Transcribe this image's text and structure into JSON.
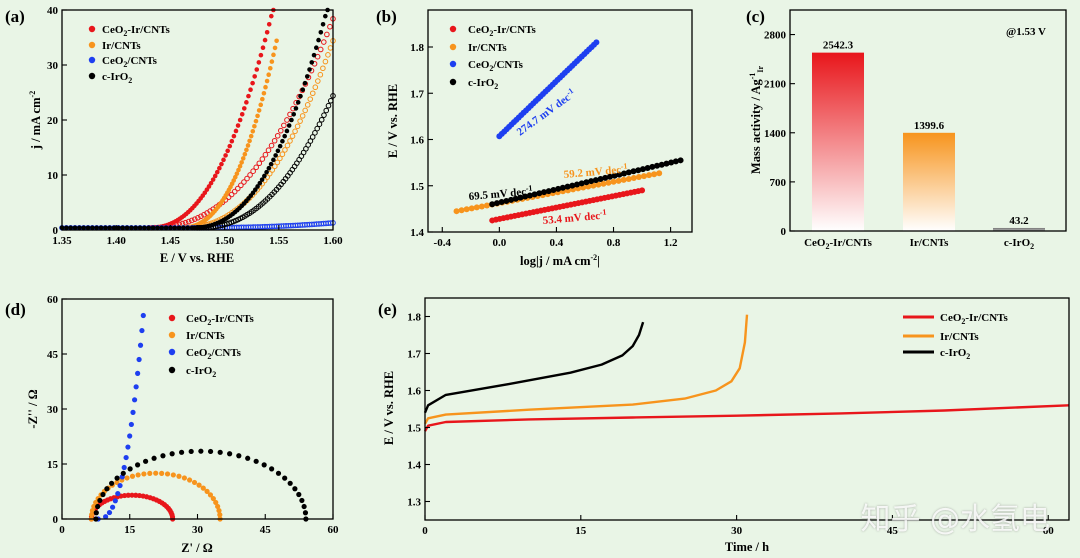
{
  "chart_data": [
    {
      "panel": "(a)",
      "type": "scatter",
      "xlabel": "E / V vs. RHE",
      "ylabel": "j / mA cm",
      "xlim": [
        1.35,
        1.6
      ],
      "ylim": [
        0,
        40
      ],
      "xticks": [
        "1.35",
        "1.40",
        "1.45",
        "1.50",
        "1.55",
        "1.60"
      ],
      "yticks": [
        "0",
        "10",
        "20",
        "30",
        "40"
      ],
      "series": [
        {
          "name": "CeO2-Ir/CNTs",
          "color": "#e8161b",
          "onset": 1.43,
          "end": 1.545,
          "k": 40
        },
        {
          "name": "CeO2-Ir/CNTs (open)",
          "color": "#e8161b",
          "onset": 1.43,
          "end": 1.6,
          "k": 38,
          "open": true
        },
        {
          "name": "Ir/CNTs",
          "color": "#f7941d",
          "onset": 1.46,
          "end": 1.548,
          "k": 34
        },
        {
          "name": "Ir/CNTs (open)",
          "color": "#f7941d",
          "onset": 1.46,
          "end": 1.6,
          "k": 34,
          "open": true
        },
        {
          "name": "CeO2/CNTs",
          "color": "#1e3ff0",
          "onset": 1.47,
          "end": 1.6,
          "k": 0.9,
          "open": true
        },
        {
          "name": "c-IrO2",
          "color": "#000000",
          "onset": 1.47,
          "end": 1.595,
          "k": 40
        },
        {
          "name": "c-IrO2 (open)",
          "color": "#000000",
          "onset": 1.475,
          "end": 1.6,
          "k": 24,
          "open": true
        }
      ]
    },
    {
      "panel": "(b)",
      "type": "line",
      "xlabel": "log|j / mA cm",
      "xlabel_end": "|",
      "ylabel": "E / V vs. RHE",
      "xlim": [
        -0.5,
        1.35
      ],
      "ylim": [
        1.4,
        1.88
      ],
      "xticks": [
        "-0.4",
        "0.0",
        "0.4",
        "0.8",
        "1.2"
      ],
      "yticks": [
        "1.4",
        "1.5",
        "1.6",
        "1.7",
        "1.8"
      ],
      "series": [
        {
          "name": "CeO2-Ir/CNTs",
          "color": "#e8161b",
          "x": [
            -0.05,
            1.0
          ],
          "y": [
            1.425,
            1.49
          ],
          "slope": "53.4 mV dec"
        },
        {
          "name": "Ir/CNTs",
          "color": "#f7941d",
          "x": [
            -0.3,
            1.12
          ],
          "y": [
            1.445,
            1.527
          ],
          "slope": "59.2 mV dec"
        },
        {
          "name": "CeO2/CNTs",
          "color": "#1e3ff0",
          "x": [
            0.0,
            0.68
          ],
          "y": [
            1.607,
            1.81
          ],
          "slope": "274.7 mV dec"
        },
        {
          "name": "c-IrO2",
          "color": "#000000",
          "x": [
            -0.05,
            1.27
          ],
          "y": [
            1.46,
            1.555
          ],
          "slope": "69.5 mV dec"
        }
      ]
    },
    {
      "panel": "(c)",
      "type": "bar",
      "ylabel": "Mass activity / Ag",
      "condition": "@1.53 V",
      "ylim": [
        0,
        3150
      ],
      "yticks": [
        "0",
        "700",
        "1400",
        "2100",
        "2800"
      ],
      "categories": [
        "CeO2-Ir/CNTs",
        "Ir/CNTs",
        "c-IrO2"
      ],
      "values": [
        2542.3,
        1399.6,
        43.2
      ],
      "value_labels": [
        "2542.3",
        "1399.6",
        "43.2"
      ],
      "colors": [
        "#e8161b",
        "#f7941d",
        "#777777"
      ]
    },
    {
      "panel": "(d)",
      "type": "scatter",
      "xlabel": "Z' / Ω",
      "ylabel": "-Z'' / Ω",
      "xlim": [
        0,
        60
      ],
      "ylim": [
        0,
        60
      ],
      "xticks": [
        "0",
        "15",
        "30",
        "45",
        "60"
      ],
      "yticks": [
        "0",
        "15",
        "30",
        "45",
        "60"
      ],
      "series": [
        {
          "name": "CeO2-Ir/CNTs",
          "color": "#e8161b",
          "kind": "arc",
          "x0": 6.5,
          "x1": 24.5,
          "h": 6.5
        },
        {
          "name": "Ir/CNTs",
          "color": "#f7941d",
          "kind": "arc",
          "x0": 6.5,
          "x1": 35.0,
          "h": 12.5
        },
        {
          "name": "CeO2/CNTs",
          "color": "#1e3ff0",
          "kind": "capacitive",
          "x0": 8.0,
          "xtop": 18.0,
          "ytop": 55.5
        },
        {
          "name": "c-IrO2",
          "color": "#000000",
          "kind": "arc",
          "x0": 7.5,
          "x1": 54.0,
          "h": 18.5
        }
      ]
    },
    {
      "panel": "(e)",
      "type": "line",
      "xlabel": "Time / h",
      "ylabel": "E / V vs. RHE",
      "xlim": [
        0,
        62
      ],
      "ylim": [
        1.25,
        1.85
      ],
      "xticks": [
        "0",
        "15",
        "30",
        "45",
        "60"
      ],
      "yticks": [
        "1.3",
        "1.4",
        "1.5",
        "1.6",
        "1.7",
        "1.8"
      ],
      "series": [
        {
          "name": "CeO2-Ir/CNTs",
          "color": "#e8161b",
          "t": [
            0,
            0.3,
            2,
            10,
            20,
            30,
            40,
            50,
            62
          ],
          "E": [
            1.49,
            1.505,
            1.515,
            1.522,
            1.527,
            1.532,
            1.538,
            1.546,
            1.56
          ]
        },
        {
          "name": "Ir/CNTs",
          "color": "#f7941d",
          "t": [
            0,
            0.3,
            2,
            10,
            20,
            25,
            28,
            29.5,
            30.3,
            30.8,
            31.0
          ],
          "E": [
            1.51,
            1.525,
            1.535,
            1.548,
            1.562,
            1.578,
            1.6,
            1.625,
            1.66,
            1.73,
            1.805
          ]
        },
        {
          "name": "c-IrO2",
          "color": "#000000",
          "t": [
            0,
            0.3,
            2,
            8,
            14,
            17,
            19,
            20,
            20.6,
            21.0
          ],
          "E": [
            1.54,
            1.56,
            1.588,
            1.617,
            1.648,
            1.67,
            1.695,
            1.72,
            1.75,
            1.785
          ]
        }
      ]
    }
  ],
  "watermark": "知乎 @水氢电"
}
